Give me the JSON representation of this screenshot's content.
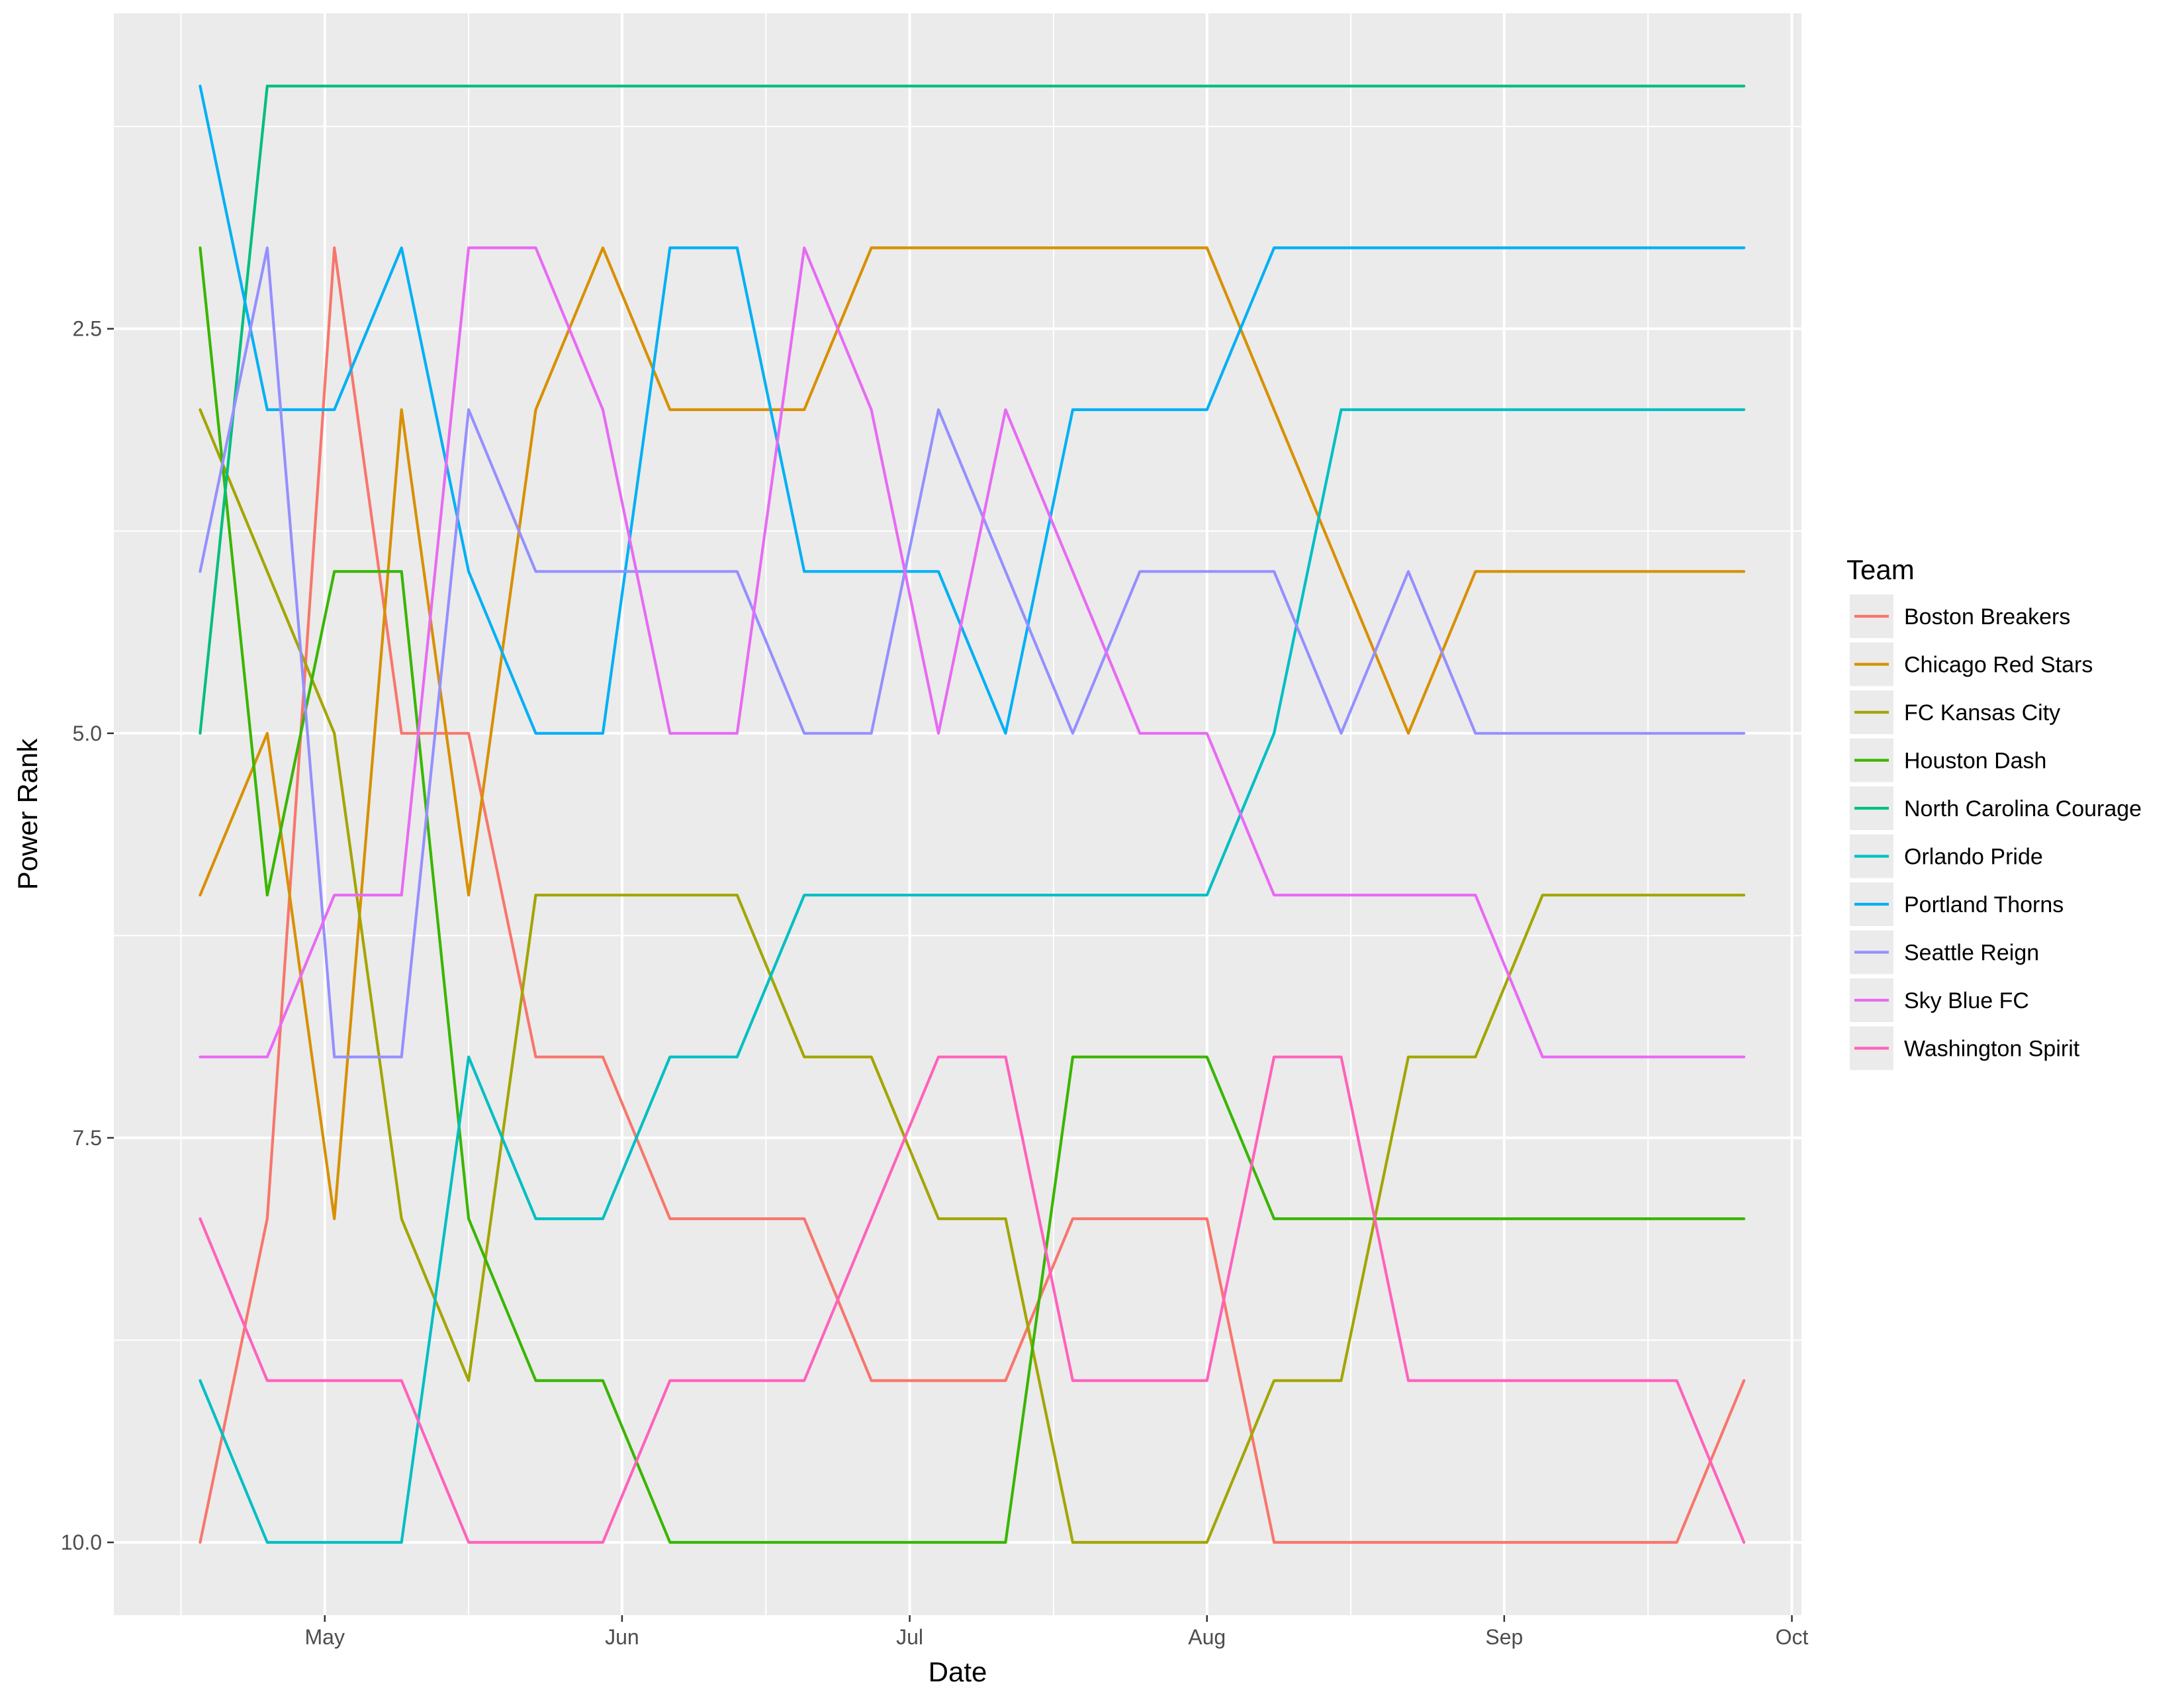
{
  "chart_data": {
    "type": "line",
    "xlabel": "Date",
    "ylabel": "Power Rank",
    "y_reversed": true,
    "ylim": [
      10.45,
      0.55
    ],
    "xlim": [
      "2017-04-09",
      "2017-10-02"
    ],
    "x_ticks": [
      {
        "label": "May",
        "date": "2017-05-01"
      },
      {
        "label": "Jun",
        "date": "2017-06-01"
      },
      {
        "label": "Jul",
        "date": "2017-07-01"
      },
      {
        "label": "Aug",
        "date": "2017-08-01"
      },
      {
        "label": "Sep",
        "date": "2017-09-01"
      },
      {
        "label": "Oct",
        "date": "2017-10-01"
      }
    ],
    "x_minor_dates": [
      "2017-04-16",
      "2017-05-16",
      "2017-06-16",
      "2017-07-16",
      "2017-08-16",
      "2017-09-16"
    ],
    "y_ticks": [
      {
        "label": "2.5",
        "value": 2.5
      },
      {
        "label": "5.0",
        "value": 5.0
      },
      {
        "label": "7.5",
        "value": 7.5
      },
      {
        "label": "10.0",
        "value": 10.0
      }
    ],
    "y_minor_values": [
      1.25,
      3.75,
      6.25,
      8.75
    ],
    "legend": {
      "title": "Team",
      "position": "right"
    },
    "x": [
      "2017-04-18",
      "2017-04-25",
      "2017-05-02",
      "2017-05-09",
      "2017-05-16",
      "2017-05-23",
      "2017-05-30",
      "2017-06-06",
      "2017-06-13",
      "2017-06-20",
      "2017-06-27",
      "2017-07-04",
      "2017-07-11",
      "2017-07-18",
      "2017-07-25",
      "2017-08-01",
      "2017-08-08",
      "2017-08-15",
      "2017-08-22",
      "2017-08-29",
      "2017-09-05",
      "2017-09-12",
      "2017-09-19",
      "2017-09-26"
    ],
    "series": [
      {
        "name": "Boston Breakers",
        "color": "#F8766D",
        "values": [
          10,
          8,
          2,
          5,
          5,
          7,
          7,
          8,
          8,
          8,
          9,
          9,
          9,
          8,
          8,
          8,
          10,
          10,
          10,
          10,
          10,
          10,
          10,
          9
        ]
      },
      {
        "name": "Chicago Red Stars",
        "color": "#D89000",
        "values": [
          6,
          5,
          8,
          3,
          6,
          3,
          2,
          3,
          3,
          3,
          2,
          2,
          2,
          2,
          2,
          2,
          3,
          4,
          5,
          4,
          4,
          4,
          4,
          4
        ]
      },
      {
        "name": "FC Kansas City",
        "color": "#A3A500",
        "values": [
          3,
          4,
          5,
          8,
          9,
          6,
          6,
          6,
          6,
          7,
          7,
          8,
          8,
          10,
          10,
          10,
          9,
          9,
          7,
          7,
          6,
          6,
          6,
          6
        ]
      },
      {
        "name": "Houston Dash",
        "color": "#39B600",
        "values": [
          2,
          6,
          4,
          4,
          8,
          9,
          9,
          10,
          10,
          10,
          10,
          10,
          10,
          7,
          7,
          7,
          8,
          8,
          8,
          8,
          8,
          8,
          8,
          8
        ]
      },
      {
        "name": "North Carolina Courage",
        "color": "#00BF7D",
        "values": [
          5,
          1,
          1,
          1,
          1,
          1,
          1,
          1,
          1,
          1,
          1,
          1,
          1,
          1,
          1,
          1,
          1,
          1,
          1,
          1,
          1,
          1,
          1,
          1
        ]
      },
      {
        "name": "Orlando Pride",
        "color": "#00BFC4",
        "values": [
          9,
          10,
          10,
          10,
          7,
          8,
          8,
          7,
          7,
          6,
          6,
          6,
          6,
          6,
          6,
          6,
          5,
          3,
          3,
          3,
          3,
          3,
          3,
          3
        ]
      },
      {
        "name": "Portland Thorns",
        "color": "#00B0F6",
        "values": [
          1,
          3,
          3,
          2,
          4,
          5,
          5,
          2,
          2,
          4,
          4,
          4,
          5,
          3,
          3,
          3,
          2,
          2,
          2,
          2,
          2,
          2,
          2,
          2
        ]
      },
      {
        "name": "Seattle Reign",
        "color": "#9590FF",
        "values": [
          4,
          2,
          7,
          7,
          3,
          4,
          4,
          4,
          4,
          5,
          5,
          3,
          4,
          5,
          4,
          4,
          4,
          5,
          4,
          5,
          5,
          5,
          5,
          5
        ]
      },
      {
        "name": "Sky Blue FC",
        "color": "#E76BF3",
        "values": [
          7,
          7,
          6,
          6,
          2,
          2,
          3,
          5,
          5,
          2,
          3,
          5,
          3,
          4,
          5,
          5,
          6,
          6,
          6,
          6,
          7,
          7,
          7,
          7
        ]
      },
      {
        "name": "Washington Spirit",
        "color": "#FF62BC",
        "values": [
          8,
          9,
          9,
          9,
          10,
          10,
          10,
          9,
          9,
          9,
          8,
          7,
          7,
          9,
          9,
          9,
          7,
          7,
          9,
          9,
          9,
          9,
          9,
          10
        ]
      }
    ]
  }
}
